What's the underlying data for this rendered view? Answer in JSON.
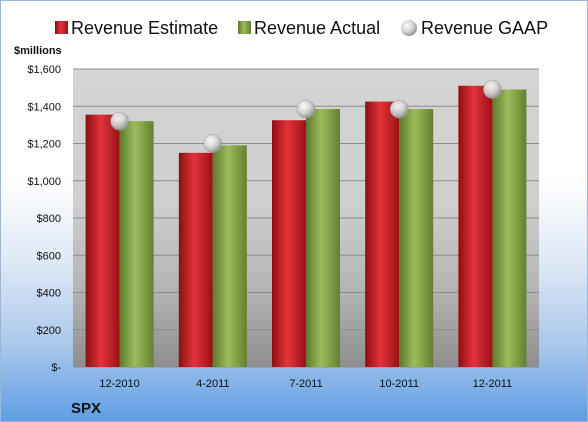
{
  "chart_data": {
    "type": "bar",
    "title": "",
    "ylabel": "$millions",
    "company": "SPX",
    "categories": [
      "12-2010",
      "4-2011",
      "7-2011",
      "10-2011",
      "12-2011"
    ],
    "series": [
      {
        "name": "Revenue Estimate",
        "type": "bar",
        "color": "#cc1f26",
        "values": [
          1355,
          1150,
          1325,
          1425,
          1510
        ]
      },
      {
        "name": "Revenue Actual",
        "type": "bar",
        "color": "#8aa84b",
        "values": [
          1320,
          1190,
          1385,
          1385,
          1490
        ]
      },
      {
        "name": "Revenue GAAP",
        "type": "marker",
        "color": "#c9c9c9",
        "values": [
          1320,
          1200,
          1385,
          1385,
          1490
        ]
      }
    ],
    "ylim": [
      0,
      1600
    ],
    "yticks": [
      0,
      200,
      400,
      600,
      800,
      1000,
      1200,
      1400,
      1600
    ],
    "yticklabels": [
      "$-",
      "$200",
      "$400",
      "$600",
      "$800",
      "$1,000",
      "$1,200",
      "$1,400",
      "$1,600"
    ],
    "grid": true,
    "legend": "top"
  }
}
